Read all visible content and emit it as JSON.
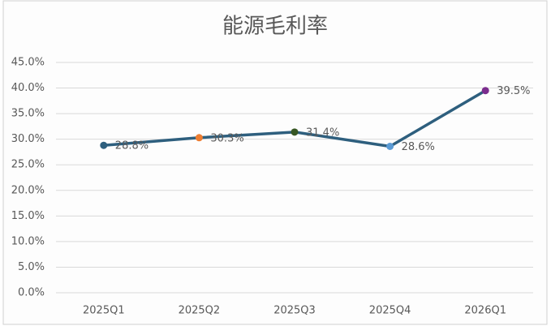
{
  "chart_data": {
    "type": "line",
    "title": "能源毛利率",
    "categories": [
      "2025Q1",
      "2025Q2",
      "2025Q3",
      "2025Q4",
      "2026Q1"
    ],
    "values": [
      28.8,
      30.3,
      31.4,
      28.6,
      39.5
    ],
    "value_labels": [
      "28.8%",
      "30.3%",
      "31.4%",
      "28.6%",
      "39.5%"
    ],
    "color": "#2e5f7e",
    "point_colors": [
      "#2e5f7e",
      "#ed7d31",
      "#375623",
      "#5b9bd5",
      "#7b2d8e"
    ],
    "ylim": [
      0,
      45
    ],
    "yticks": [
      {
        "value": 0,
        "label": "0.0%"
      },
      {
        "value": 5,
        "label": "5.0%"
      },
      {
        "value": 10,
        "label": "10.0%"
      },
      {
        "value": 15,
        "label": "15.0%"
      },
      {
        "value": 20,
        "label": "20.0%"
      },
      {
        "value": 25,
        "label": "25.0%"
      },
      {
        "value": 30,
        "label": "30.0%"
      },
      {
        "value": 35,
        "label": "35.0%"
      },
      {
        "value": 40,
        "label": "40.0%"
      },
      {
        "value": 45,
        "label": "45.0%"
      }
    ],
    "grid": true
  }
}
